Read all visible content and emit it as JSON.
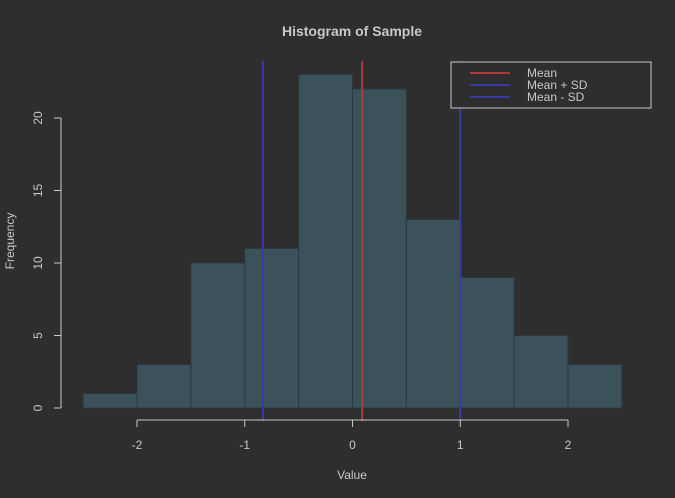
{
  "chart_data": {
    "type": "bar",
    "title": "Histogram of Sample",
    "xlabel": "Value",
    "ylabel": "Frequency",
    "bins": [
      {
        "start": -2.5,
        "end": -2.0,
        "count": 1
      },
      {
        "start": -2.0,
        "end": -1.5,
        "count": 3
      },
      {
        "start": -1.5,
        "end": -1.0,
        "count": 10
      },
      {
        "start": -1.0,
        "end": -0.5,
        "count": 11
      },
      {
        "start": -0.5,
        "end": 0.0,
        "count": 23
      },
      {
        "start": 0.0,
        "end": 0.5,
        "count": 22
      },
      {
        "start": 0.5,
        "end": 1.0,
        "count": 13
      },
      {
        "start": 1.0,
        "end": 1.5,
        "count": 9
      },
      {
        "start": 1.5,
        "end": 2.0,
        "count": 5
      },
      {
        "start": 2.0,
        "end": 2.5,
        "count": 3
      }
    ],
    "xlim": [
      -2.5,
      2.5
    ],
    "ylim": [
      0,
      24
    ],
    "x_ticks": [
      -2,
      -1,
      0,
      1,
      2
    ],
    "y_ticks": [
      0,
      5,
      10,
      15,
      20
    ],
    "x_tick_labels": [
      "-2",
      "-1",
      "0",
      "1",
      "2"
    ],
    "y_tick_labels": [
      "0",
      "5",
      "10",
      "15",
      "20"
    ],
    "reference_lines": [
      {
        "name": "Mean",
        "x": 0.09,
        "color": "#b03a3a"
      },
      {
        "name": "Mean + SD",
        "x": 1.0,
        "color": "#3a3aa6"
      },
      {
        "name": "Mean - SD",
        "x": -0.83,
        "color": "#3a3aa6"
      }
    ],
    "legend_position": "top-right",
    "grid": false,
    "colors": {
      "background": "#2e2e2e",
      "bar_fill": "#3c525a",
      "bar_edge": "#2a3a40",
      "text": "#c8c8c8"
    }
  }
}
